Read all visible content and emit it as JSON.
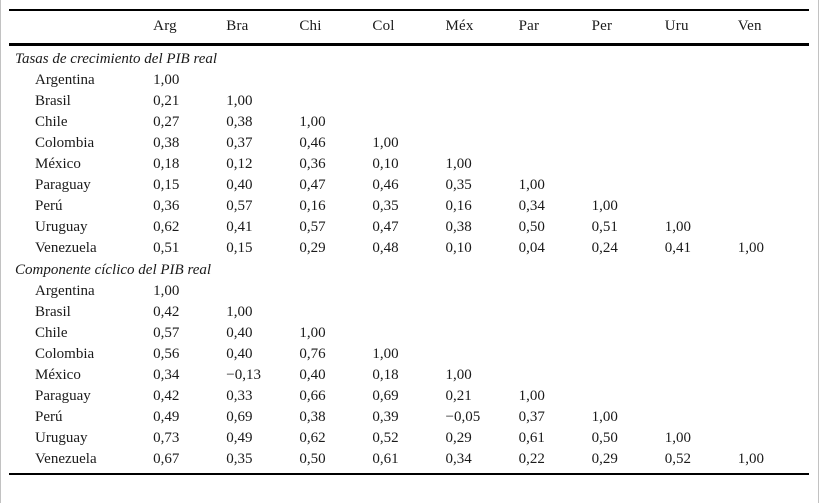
{
  "table": {
    "columns": [
      "Arg",
      "Bra",
      "Chi",
      "Col",
      "Méx",
      "Par",
      "Per",
      "Uru",
      "Ven"
    ],
    "sections": [
      {
        "title": "Tasas de crecimiento del PIB real",
        "rows": [
          {
            "label": "Argentina",
            "values": [
              "1,00",
              "",
              "",
              "",
              "",
              "",
              "",
              "",
              ""
            ]
          },
          {
            "label": "Brasil",
            "values": [
              "0,21",
              "1,00",
              "",
              "",
              "",
              "",
              "",
              "",
              ""
            ]
          },
          {
            "label": "Chile",
            "values": [
              "0,27",
              "0,38",
              "1,00",
              "",
              "",
              "",
              "",
              "",
              ""
            ]
          },
          {
            "label": "Colombia",
            "values": [
              "0,38",
              "0,37",
              "0,46",
              "1,00",
              "",
              "",
              "",
              "",
              ""
            ]
          },
          {
            "label": "México",
            "values": [
              "0,18",
              "0,12",
              "0,36",
              "0,10",
              "1,00",
              "",
              "",
              "",
              ""
            ]
          },
          {
            "label": "Paraguay",
            "values": [
              "0,15",
              "0,40",
              "0,47",
              "0,46",
              "0,35",
              "1,00",
              "",
              "",
              ""
            ]
          },
          {
            "label": "Perú",
            "values": [
              "0,36",
              "0,57",
              "0,16",
              "0,35",
              "0,16",
              "0,34",
              "1,00",
              "",
              ""
            ]
          },
          {
            "label": "Uruguay",
            "values": [
              "0,62",
              "0,41",
              "0,57",
              "0,47",
              "0,38",
              "0,50",
              "0,51",
              "1,00",
              ""
            ]
          },
          {
            "label": "Venezuela",
            "values": [
              "0,51",
              "0,15",
              "0,29",
              "0,48",
              "0,10",
              "0,04",
              "0,24",
              "0,41",
              "1,00"
            ]
          }
        ]
      },
      {
        "title": "Componente cíclico del PIB real",
        "rows": [
          {
            "label": "Argentina",
            "values": [
              "1,00",
              "",
              "",
              "",
              "",
              "",
              "",
              "",
              ""
            ]
          },
          {
            "label": "Brasil",
            "values": [
              "0,42",
              "1,00",
              "",
              "",
              "",
              "",
              "",
              "",
              ""
            ]
          },
          {
            "label": "Chile",
            "values": [
              "0,57",
              "0,40",
              "1,00",
              "",
              "",
              "",
              "",
              "",
              ""
            ]
          },
          {
            "label": "Colombia",
            "values": [
              "0,56",
              "0,40",
              "0,76",
              "1,00",
              "",
              "",
              "",
              "",
              ""
            ]
          },
          {
            "label": "México",
            "values": [
              "0,34",
              "−0,13",
              "0,40",
              "0,18",
              "1,00",
              "",
              "",
              "",
              ""
            ]
          },
          {
            "label": "Paraguay",
            "values": [
              "0,42",
              "0,33",
              "0,66",
              "0,69",
              "0,21",
              "1,00",
              "",
              "",
              ""
            ]
          },
          {
            "label": "Perú",
            "values": [
              "0,49",
              "0,69",
              "0,38",
              "0,39",
              "−0,05",
              "0,37",
              "1,00",
              "",
              ""
            ]
          },
          {
            "label": "Uruguay",
            "values": [
              "0,73",
              "0,49",
              "0,62",
              "0,52",
              "0,29",
              "0,61",
              "0,50",
              "1,00",
              ""
            ]
          },
          {
            "label": "Venezuela",
            "values": [
              "0,67",
              "0,35",
              "0,50",
              "0,61",
              "0,34",
              "0,22",
              "0,29",
              "0,52",
              "1,00"
            ]
          }
        ]
      }
    ]
  }
}
